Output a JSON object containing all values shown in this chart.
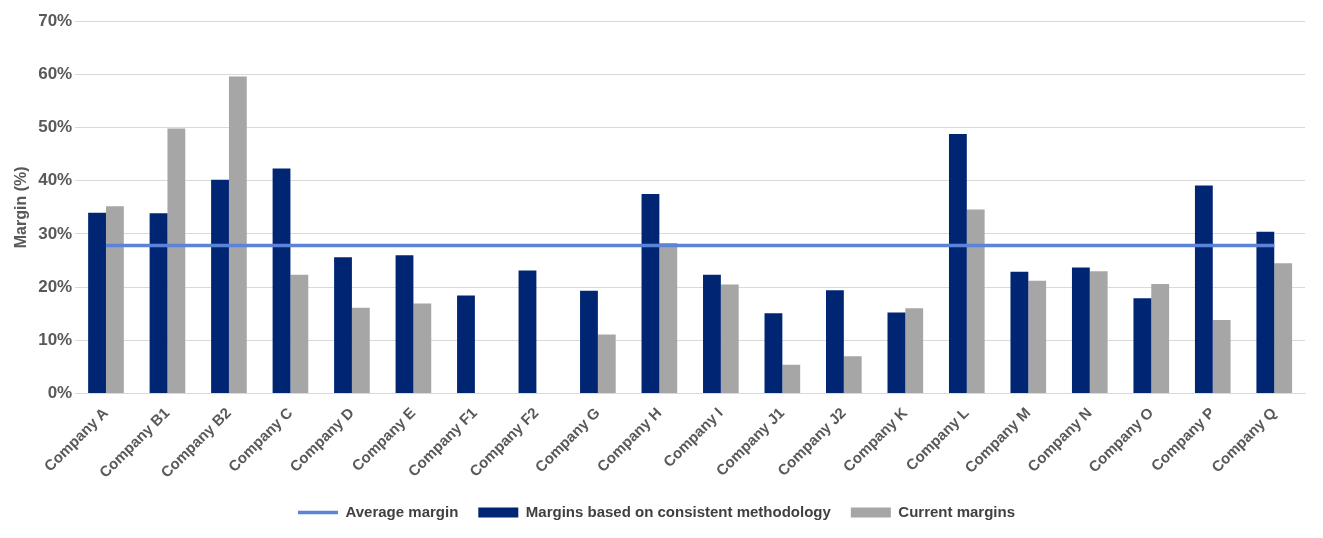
{
  "chart_data": {
    "type": "bar",
    "ylabel": "Margin (%)",
    "categories": [
      "Company A",
      "Company B1",
      "Company B2",
      "Company C",
      "Company D",
      "Company E",
      "Company F1",
      "Company F2",
      "Company G",
      "Company H",
      "Company I",
      "Company J1",
      "Company J2",
      "Company K",
      "Company L",
      "Company M",
      "Company N",
      "Company O",
      "Company P",
      "Company Q"
    ],
    "series": [
      {
        "name": "Margins based on consistent methodology",
        "color": "#002673",
        "values": [
          34.0,
          33.9,
          40.2,
          42.3,
          25.6,
          26.0,
          18.4,
          23.1,
          19.3,
          37.5,
          22.3,
          15.1,
          19.4,
          15.2,
          48.8,
          22.9,
          23.7,
          17.9,
          39.1,
          30.4
        ]
      },
      {
        "name": "Current margins",
        "color": "#a6a6a6",
        "values": [
          35.2,
          49.8,
          59.6,
          22.3,
          16.1,
          16.9,
          null,
          null,
          11.1,
          28.3,
          20.5,
          5.4,
          7.0,
          16.0,
          34.6,
          21.2,
          23.0,
          20.6,
          13.8,
          24.5
        ]
      },
      {
        "name": "Average margin",
        "type": "line",
        "color": "#5b84d8",
        "values": [
          27.8,
          27.8,
          27.8,
          27.8,
          27.8,
          27.8,
          27.8,
          27.8,
          27.8,
          27.8,
          27.8,
          27.8,
          27.8,
          27.8,
          27.8,
          27.8,
          27.8,
          27.8,
          27.8,
          27.8
        ]
      }
    ],
    "ylim": [
      0,
      70
    ],
    "yticks": [
      {
        "value": 0,
        "label": "0%"
      },
      {
        "value": 10,
        "label": "10%"
      },
      {
        "value": 20,
        "label": "20%"
      },
      {
        "value": 30,
        "label": "30%"
      },
      {
        "value": 40,
        "label": "40%"
      },
      {
        "value": 50,
        "label": "50%"
      },
      {
        "value": 60,
        "label": "60%"
      },
      {
        "value": 70,
        "label": "70%"
      }
    ],
    "grid": "y",
    "legend": "bottom",
    "marker": "none"
  }
}
